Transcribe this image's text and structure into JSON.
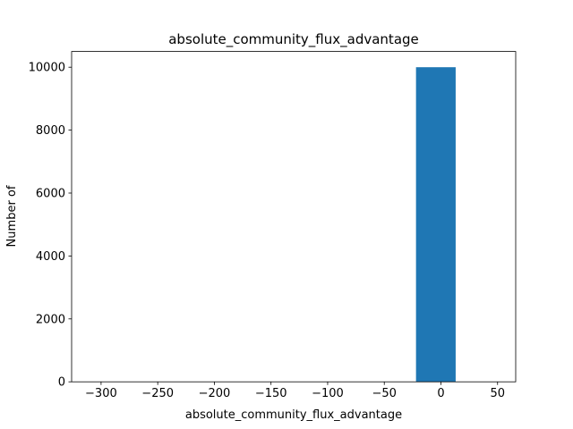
{
  "chart_data": {
    "type": "bar",
    "title": "absolute_community_flux_advantage",
    "xlabel": "absolute_community_flux_advantage",
    "ylabel": "Number of",
    "xlim": [
      -326.0,
      66.0
    ],
    "ylim": [
      0,
      10500
    ],
    "xticks": [
      -300,
      -250,
      -200,
      -150,
      -100,
      -50,
      0,
      50
    ],
    "xtick_labels": [
      "−300",
      "−250",
      "−200",
      "−150",
      "−100",
      "−50",
      "0",
      "50"
    ],
    "yticks": [
      0,
      2000,
      4000,
      6000,
      8000,
      10000
    ],
    "ytick_labels": [
      "0",
      "2000",
      "4000",
      "6000",
      "8000",
      "10000"
    ],
    "bins": [
      {
        "x0": -22.0,
        "x1": 13.0,
        "count": 10000
      }
    ],
    "color": "#1f77b4",
    "grid": false
  }
}
